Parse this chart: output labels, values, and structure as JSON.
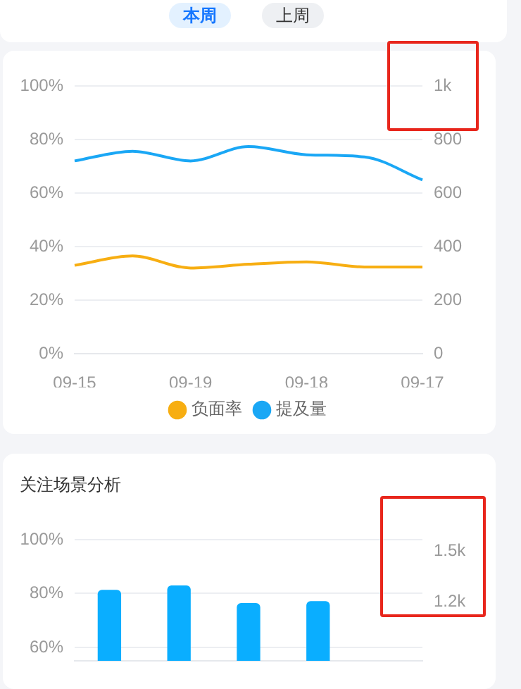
{
  "chart_data": [
    {
      "type": "line",
      "annotations": [
        "本周",
        "上周"
      ],
      "categories": [
        "09-15",
        null,
        "09-19",
        null,
        "09-18",
        null,
        "09-17"
      ],
      "series": [
        {
          "name": "负面率",
          "color": "#f7ae12",
          "values": [
            33.0,
            36.5,
            32.0,
            33.4,
            34.3,
            32.4,
            32.4
          ]
        },
        {
          "name": "提及量",
          "color": "#1aa7f5",
          "axis": "y2",
          "values": [
            720,
            756,
            720,
            774,
            743,
            735,
            649
          ]
        }
      ],
      "ylim": [
        0,
        100
      ],
      "yticks": [
        {
          "value": 0,
          "label": "0%"
        },
        {
          "value": 20,
          "label": "20%"
        },
        {
          "value": 40,
          "label": "40%"
        },
        {
          "value": 60,
          "label": "60%"
        },
        {
          "value": 80,
          "label": "80%"
        },
        {
          "value": 100,
          "label": "100%"
        }
      ],
      "y2lim": [
        0,
        1000
      ],
      "y2ticks": [
        0,
        200,
        400,
        600,
        800,
        {
          "value": 1000,
          "label": "1k"
        }
      ],
      "grid": "y",
      "legend": "bottom",
      "marker": "none",
      "line_style": "solid"
    },
    {
      "type": "bar",
      "title": "关注场景分析",
      "categories": [
        null,
        null,
        null,
        null,
        null
      ],
      "series": [
        {
          "color": "#0aaeff",
          "values": [
            81.2,
            82.8,
            76.3,
            77.0,
            null
          ]
        }
      ],
      "ylim": [
        55,
        100
      ],
      "yticks": [
        {
          "value": 60,
          "label": "60%"
        },
        {
          "value": 80,
          "label": "80%"
        },
        {
          "value": 100,
          "label": "100%"
        }
      ],
      "y2lim": [
        850,
        1570
      ],
      "y2ticks": [
        {
          "value": 1200,
          "label": "1.2k"
        },
        {
          "value": 1500,
          "label": "1.5k"
        }
      ],
      "tick_labels": "y",
      "grid": "y",
      "legend": false
    }
  ]
}
